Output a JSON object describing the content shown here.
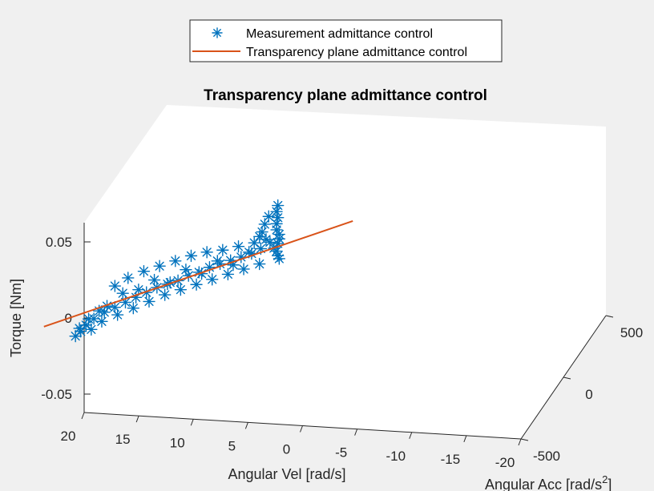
{
  "chart_data": {
    "type": "scatter",
    "title": "Transparency plane admittance control",
    "xlabel": "Angular Vel [rad/s]",
    "ylabel": "Angular Acc [rad/s",
    "ylabel_sup": "2",
    "ylabel_close": "]",
    "zlabel": "Torque [Nm]",
    "x_ticks": [
      20,
      15,
      10,
      5,
      0,
      -5,
      -10,
      -15,
      -20
    ],
    "x_tick_labels": [
      "20",
      "15",
      "10",
      "5",
      "0",
      "-5",
      "-10",
      "-15",
      "-20"
    ],
    "y_ticks": [
      -500,
      0,
      500
    ],
    "y_tick_labels": [
      "-500",
      "0",
      "500"
    ],
    "z_ticks": [
      0.05,
      0,
      -0.05
    ],
    "z_tick_labels": [
      "0.05",
      "0",
      "-0.05"
    ],
    "xlim": [
      -20,
      20
    ],
    "ylim": [
      -500,
      500
    ],
    "zlim": [
      -0.07,
      0.07
    ],
    "grid": false,
    "legend_position": "top",
    "series": [
      {
        "name": "Measurement admittance control",
        "kind": "scatter",
        "marker": "asterisk",
        "color": "#0072bd",
        "points": [
          [
            0.2,
            0,
            0.074
          ],
          [
            0.3,
            0,
            0.07
          ],
          [
            0.2,
            0,
            0.066
          ],
          [
            0.3,
            0,
            0.062
          ],
          [
            0.3,
            0,
            0.058
          ],
          [
            0.1,
            0,
            0.055
          ],
          [
            0.1,
            0,
            0.052
          ],
          [
            0.2,
            0,
            0.049
          ],
          [
            0.5,
            0,
            0.046
          ],
          [
            0.3,
            0,
            0.044
          ],
          [
            0.2,
            0,
            0.041
          ],
          [
            0.1,
            0,
            0.039
          ],
          [
            0.9,
            0,
            0.067
          ],
          [
            1.2,
            0,
            0.062
          ],
          [
            1.4,
            0,
            0.057
          ],
          [
            1.6,
            0,
            0.054
          ],
          [
            1.1,
            0,
            0.052
          ],
          [
            0.8,
            0,
            0.05
          ],
          [
            1.5,
            0,
            0.046
          ],
          [
            2.2,
            0,
            0.043
          ],
          [
            3.0,
            0,
            0.041
          ],
          [
            3.8,
            0,
            0.039
          ],
          [
            4.6,
            0,
            0.037
          ],
          [
            5.4,
            0,
            0.035
          ],
          [
            6.2,
            0,
            0.032
          ],
          [
            7.0,
            0,
            0.03
          ],
          [
            7.8,
            0,
            0.027
          ],
          [
            8.6,
            0,
            0.025
          ],
          [
            9.4,
            0,
            0.023
          ],
          [
            10.2,
            0,
            0.02
          ],
          [
            11.0,
            0,
            0.017
          ],
          [
            11.8,
            0,
            0.014
          ],
          [
            12.6,
            0,
            0.011
          ],
          [
            13.4,
            0,
            0.008
          ],
          [
            14.2,
            0,
            0.004
          ],
          [
            14.8,
            0,
            0.0
          ],
          [
            15.2,
            0,
            -0.004
          ],
          [
            15.6,
            0,
            -0.007
          ],
          [
            15.3,
            0,
            -0.002
          ],
          [
            14.6,
            0,
            0.004
          ],
          [
            13.8,
            0,
            0.009
          ],
          [
            13.2,
            0,
            0.012
          ],
          [
            2.0,
            0,
            0.05
          ],
          [
            3.2,
            0,
            0.048
          ],
          [
            4.4,
            0,
            0.046
          ],
          [
            5.6,
            0,
            0.045
          ],
          [
            6.8,
            0,
            0.043
          ],
          [
            8.0,
            0,
            0.04
          ],
          [
            9.2,
            0,
            0.037
          ],
          [
            10.4,
            0,
            0.034
          ],
          [
            11.6,
            0,
            0.03
          ],
          [
            12.6,
            0,
            0.025
          ],
          [
            1.6,
            0,
            0.036
          ],
          [
            2.8,
            0,
            0.033
          ],
          [
            4.0,
            0,
            0.03
          ],
          [
            5.2,
            0,
            0.027
          ],
          [
            6.4,
            0,
            0.024
          ],
          [
            7.6,
            0,
            0.021
          ],
          [
            8.8,
            0,
            0.018
          ],
          [
            10.0,
            0,
            0.014
          ],
          [
            11.2,
            0,
            0.01
          ],
          [
            12.4,
            0,
            0.006
          ],
          [
            13.6,
            0,
            0.002
          ],
          [
            14.4,
            0,
            -0.003
          ],
          [
            2.4,
            0,
            0.044
          ],
          [
            4.8,
            0,
            0.039
          ],
          [
            7.2,
            0,
            0.034
          ],
          [
            9.6,
            0,
            0.028
          ],
          [
            12.0,
            0,
            0.02
          ],
          [
            3.6,
            0,
            0.036
          ],
          [
            6.0,
            0,
            0.031
          ],
          [
            8.4,
            0,
            0.026
          ],
          [
            10.8,
            0,
            0.022
          ]
        ]
      },
      {
        "name": "Transparency plane admittance control",
        "kind": "line",
        "color": "#d95319",
        "points": [
          [
            -5.5,
            0,
            0.062
          ],
          [
            18.0,
            0,
            0.0
          ]
        ]
      }
    ]
  }
}
